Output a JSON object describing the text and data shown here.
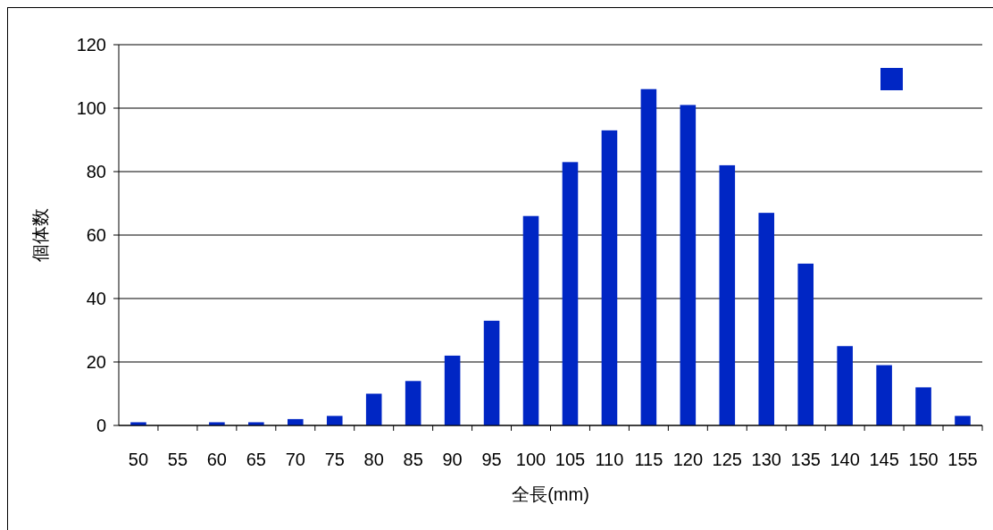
{
  "chart_data": {
    "type": "bar",
    "xlabel": "全長(mm)",
    "ylabel": "個体数",
    "categories": [
      "50",
      "55",
      "60",
      "65",
      "70",
      "75",
      "80",
      "85",
      "90",
      "95",
      "100",
      "105",
      "110",
      "115",
      "120",
      "125",
      "130",
      "135",
      "140",
      "145",
      "150",
      "155"
    ],
    "series": [
      {
        "color": "#0026c4",
        "values": [
          1,
          0,
          1,
          1,
          2,
          3,
          10,
          14,
          22,
          33,
          66,
          83,
          93,
          106,
          101,
          82,
          67,
          51,
          25,
          19,
          12,
          3
        ]
      }
    ],
    "ylim": [
      0,
      120
    ],
    "yticks": [
      0,
      20,
      40,
      60,
      80,
      100,
      120
    ],
    "grid": "y"
  }
}
